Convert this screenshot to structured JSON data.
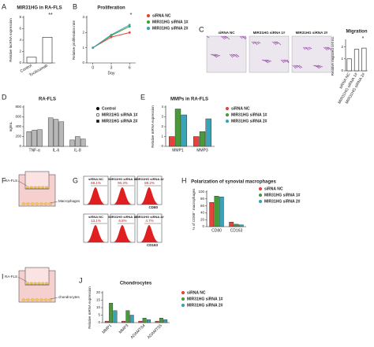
{
  "panel_letters": [
    "A",
    "B",
    "C",
    "D",
    "E",
    "F",
    "G",
    "H",
    "I",
    "J"
  ],
  "chart_data": [
    {
      "type": "bar",
      "title": "MIR31HG in RA-FLS",
      "y_label": "Relative lncRNA expression",
      "categories": [
        "Control",
        "Tocilizumab"
      ],
      "values": [
        1,
        4.5
      ],
      "color": "#ffffff",
      "ylim": [
        0,
        8
      ],
      "yticks": [
        0,
        2,
        4,
        6,
        8
      ],
      "annotation": "**"
    },
    {
      "type": "line",
      "title": "Proliferation",
      "x_label": "Day",
      "y_label": "Relative proliferation rate",
      "x": [
        0,
        3,
        6
      ],
      "xlim": [
        -1,
        7
      ],
      "xticks": [
        0,
        3,
        6
      ],
      "ylim": [
        0,
        3
      ],
      "yticks": [
        0,
        1,
        2,
        3
      ],
      "series": [
        {
          "name": "siRNA NC",
          "color": "#e8433a",
          "values": [
            1,
            1.7,
            2.0
          ]
        },
        {
          "name": "MIR31HG siRNA 1#",
          "color": "#4a9a3a",
          "values": [
            1,
            1.8,
            2.4
          ]
        },
        {
          "name": "MIR31HG siRNA 2#",
          "color": "#3aa3b8",
          "values": [
            1,
            1.85,
            2.5
          ]
        }
      ],
      "annotation": "*"
    },
    {
      "type": "bar",
      "title": "Migration",
      "y_label": "Relative migrated cell no.",
      "categories": [
        "siRNA NC",
        "MIR31HG siRNA 1#",
        "MIR31HG siRNA 2#"
      ],
      "values": [
        1,
        1.8,
        1.9
      ],
      "color": "#ffffff",
      "ylim": [
        0,
        2.5
      ],
      "yticks": [
        0,
        1,
        2
      ],
      "annotation": "*"
    },
    {
      "type": "bar",
      "title": "RA-FLS",
      "y_label": "ng/mL",
      "categories": [
        "TNF-α",
        "IL-6",
        "IL-8"
      ],
      "ylim": [
        0,
        800
      ],
      "yticks": [
        0,
        200,
        400,
        600,
        800
      ],
      "series": [
        {
          "name": "Control",
          "color": "#b8b8b8",
          "marker": "circle",
          "values": [
            300,
            580,
            130
          ]
        },
        {
          "name": "MIR31HG siRNA 1#",
          "color": "#b8b8b8",
          "marker": "open-circle",
          "values": [
            330,
            550,
            200
          ]
        },
        {
          "name": "MIR31HG siRNA 2#",
          "color": "#b8b8b8",
          "marker": "square",
          "values": [
            340,
            500,
            150
          ]
        }
      ]
    },
    {
      "type": "bar",
      "title": "MMPs in RA-FLS",
      "y_label": "Relative mRNA expression",
      "categories": [
        "MMP1",
        "MMP3"
      ],
      "ylim": [
        0,
        4
      ],
      "yticks": [
        0,
        1,
        2,
        3,
        4
      ],
      "series": [
        {
          "name": "siRNA NC",
          "color": "#e8433a",
          "values": [
            1,
            1
          ]
        },
        {
          "name": "MIR31HG siRNA 1#",
          "color": "#4a9a3a",
          "values": [
            3.8,
            1.5
          ]
        },
        {
          "name": "MIR31HG siRNA 2#",
          "color": "#3aa3b8",
          "values": [
            3.2,
            2.8
          ]
        }
      ]
    },
    {
      "type": "bar",
      "title": "Polarization of synovial macrophages",
      "y_label": "% of CD68⁺ macrophages",
      "categories": [
        "CD80",
        "CD163"
      ],
      "ylim": [
        0,
        100
      ],
      "yticks": [
        0,
        20,
        40,
        60,
        80,
        100
      ],
      "series": [
        {
          "name": "siRNA NC",
          "color": "#e8433a",
          "values": [
            70,
            13
          ]
        },
        {
          "name": "MIR31HG siRNA 1#",
          "color": "#4a9a3a",
          "values": [
            88,
            7
          ]
        },
        {
          "name": "MIR31HG siRNA 2#",
          "color": "#3aa3b8",
          "values": [
            86,
            5
          ]
        }
      ]
    },
    {
      "type": "bar",
      "title": "Chondrocytes",
      "y_label": "Relative mRNA expression",
      "categories": [
        "MMP1",
        "MMP3",
        "ADAMTS4",
        "ADAMTS5"
      ],
      "ylim": [
        0,
        20
      ],
      "yticks": [
        0,
        5,
        10,
        15,
        20
      ],
      "series": [
        {
          "name": "siRNA NC",
          "color": "#e8433a",
          "values": [
            1,
            1,
            1,
            1
          ]
        },
        {
          "name": "MIR31HG siRNA 1#",
          "color": "#4a9a3a",
          "values": [
            13,
            8,
            3,
            3
          ]
        },
        {
          "name": "MIR31HG siRNA 2#",
          "color": "#3aa3b8",
          "values": [
            8,
            5,
            2,
            2
          ]
        }
      ]
    }
  ],
  "micrographs": [
    "siRNA NC",
    "MIR31HG siRNA 1#",
    "MIR31HG siRNA 2#"
  ],
  "flow": [
    {
      "axis": "CD80",
      "panels": [
        {
          "label": "siRNA NC",
          "percent": "68.1%"
        },
        {
          "label": "MIR31HG siRNA 1#",
          "percent": "90.3%"
        },
        {
          "label": "MIR31HG siRNA 2#",
          "percent": "88.2%"
        }
      ]
    },
    {
      "axis": "CD163",
      "panels": [
        {
          "label": "siRNA NC",
          "percent": "13.1%"
        },
        {
          "label": "MIR31HG siRNA 1#",
          "percent": "6.8%"
        },
        {
          "label": "MIR31HG siRNA 2#",
          "percent": "4.7%"
        }
      ]
    }
  ],
  "diagrams": [
    {
      "top": "RA-FLS",
      "bottom": "Macrophages"
    },
    {
      "top": "RA-FLS",
      "bottom": "chondrocytes"
    }
  ]
}
